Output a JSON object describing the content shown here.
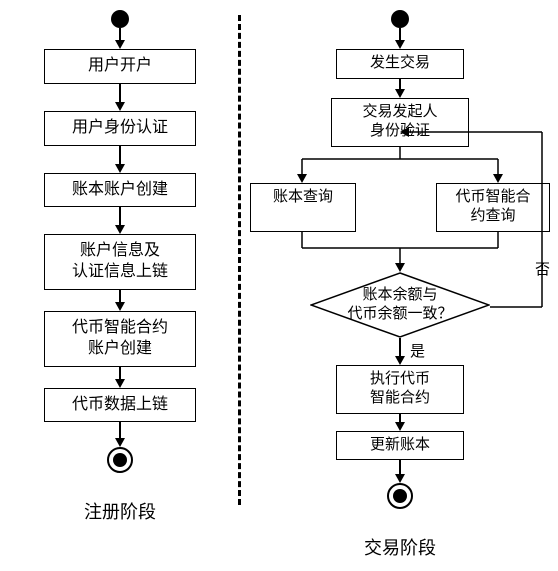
{
  "colors": {
    "stroke": "#000000",
    "bg": "#ffffff"
  },
  "left": {
    "steps": [
      "用户开户",
      "用户身份认证",
      "账本账户创建",
      "账户信息及\n认证信息上链",
      "代币智能合约\n账户创建",
      "代币数据上链"
    ],
    "caption": "注册阶段"
  },
  "right": {
    "step1": "发生交易",
    "step2": "交易发起人\n身份验证",
    "branchLeft": "账本查询",
    "branchRight": "代币智能合\n约查询",
    "decision": "账本余额与\n代币余额一致？",
    "yes": "是",
    "no": "否",
    "step3": "执行代币\n智能合约",
    "step4": "更新账本",
    "caption": "交易阶段"
  },
  "style": {
    "box_border_width": 1.5,
    "font_family": "SimSun",
    "arrow_head": 9,
    "dash": "3px dashed"
  }
}
